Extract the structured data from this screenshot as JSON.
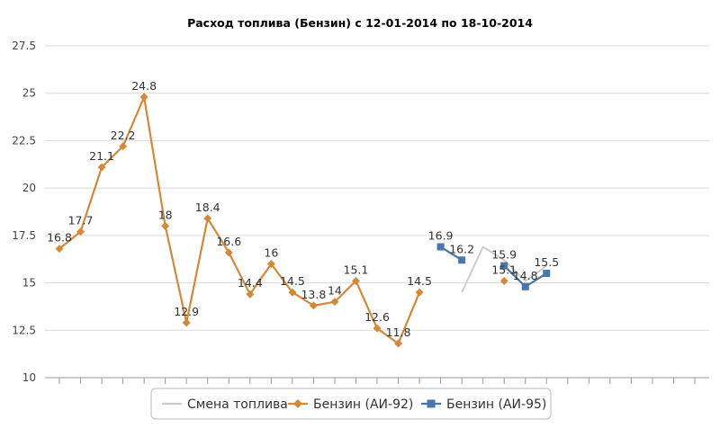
{
  "chart_data": {
    "type": "line",
    "title": "Расход топлива (Бензин) с 12-01-2014 по 18-10-2014",
    "xlabel": "",
    "ylabel": "",
    "ylim": [
      10,
      27.5
    ],
    "yticks": [
      "10",
      "12.5",
      "15",
      "17.5",
      "20",
      "22.5",
      "25",
      "27.5"
    ],
    "grid": true,
    "legend_position": "bottom",
    "x": [
      1,
      2,
      3,
      4,
      5,
      6,
      7,
      8,
      9,
      10,
      11,
      12,
      13,
      14,
      15,
      16,
      17,
      18,
      19,
      20,
      21,
      22,
      23,
      24,
      25,
      26,
      27,
      28,
      29,
      30,
      31
    ],
    "series": [
      {
        "name": "Смена топлива",
        "color": "#cccccc",
        "marker": "none",
        "values": [
          null,
          null,
          null,
          null,
          null,
          null,
          null,
          null,
          null,
          null,
          null,
          null,
          null,
          null,
          null,
          null,
          null,
          null,
          null,
          14.5,
          16.9,
          16.2,
          15.1,
          15.9,
          null,
          null,
          null,
          null,
          null,
          null,
          null
        ]
      },
      {
        "name": "Бензин (АИ-92)",
        "color": "#d4883a",
        "marker": "diamond",
        "values": [
          16.8,
          17.7,
          21.1,
          22.2,
          24.8,
          18,
          12.9,
          18.4,
          16.6,
          14.4,
          16,
          14.5,
          13.8,
          14,
          15.1,
          12.6,
          11.8,
          14.5,
          null,
          null,
          null,
          15.1,
          null,
          null,
          null,
          null,
          null,
          null,
          null,
          null,
          null
        ],
        "labels": [
          "16.8",
          "17.7",
          "21.1",
          "22.2",
          "24.8",
          "18",
          "12.9",
          "18.4",
          "16.6",
          "14.4",
          "16",
          "14.5",
          "13.8",
          "14",
          "15.1",
          "12.6",
          "11.8",
          "14.5",
          "",
          "",
          "",
          "15.1",
          "",
          "",
          "",
          "",
          "",
          "",
          "",
          "",
          ""
        ]
      },
      {
        "name": "Бензин (АИ-95)",
        "color": "#4a76aa",
        "marker": "square",
        "values": [
          null,
          null,
          null,
          null,
          null,
          null,
          null,
          null,
          null,
          null,
          null,
          null,
          null,
          null,
          null,
          null,
          null,
          null,
          16.9,
          16.2,
          null,
          15.9,
          14.8,
          15.5,
          null,
          null,
          null,
          null,
          null,
          null,
          null
        ],
        "labels": [
          "",
          "",
          "",
          "",
          "",
          "",
          "",
          "",
          "",
          "",
          "",
          "",
          "",
          "",
          "",
          "",
          "",
          "",
          "16.9",
          "16.2",
          "",
          "15.9",
          "14.8",
          "15.5",
          "",
          "",
          "",
          "",
          "",
          "",
          ""
        ]
      }
    ]
  }
}
